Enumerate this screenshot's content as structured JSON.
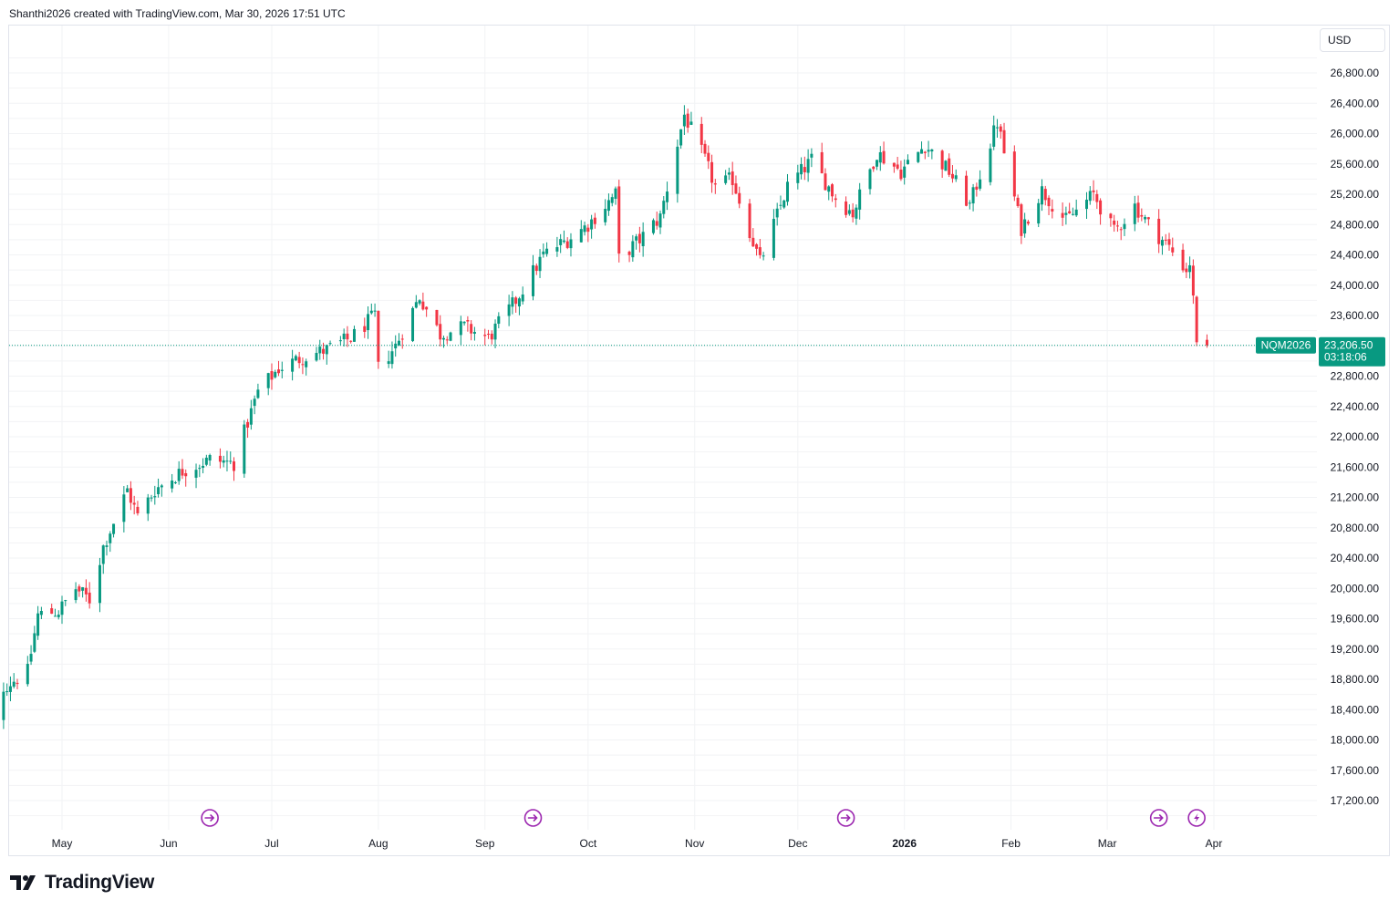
{
  "header": {
    "attribution": "Shanthi2026 created with TradingView.com, Mar 30, 2026 17:51 UTC"
  },
  "currency_button": "USD",
  "last_price": {
    "symbol": "NQM2026",
    "price": "23,206.50",
    "countdown": "03:18:06",
    "value": 23206.5,
    "color": "#089981"
  },
  "footer": {
    "brand": "TradingView"
  },
  "colors": {
    "up": "#089981",
    "down": "#f23645",
    "grid": "#f2f3f5",
    "event": "#9c27b0"
  },
  "event_icons": [
    {
      "date": "2025-06-13",
      "icon": "dividend-arrow-icon"
    },
    {
      "date": "2025-09-15",
      "icon": "dividend-arrow-icon"
    },
    {
      "date": "2025-12-15",
      "icon": "dividend-arrow-icon"
    },
    {
      "date": "2026-03-16",
      "icon": "dividend-arrow-icon"
    },
    {
      "date": "2026-03-27",
      "icon": "lightning-icon"
    }
  ],
  "chart_data": {
    "type": "candlestick",
    "series_name": "NQM2026",
    "y_axis": {
      "ticks": [
        17200,
        17600,
        18000,
        18400,
        18800,
        19200,
        19600,
        20000,
        20400,
        20800,
        21200,
        21600,
        22000,
        22400,
        22800,
        23600,
        24000,
        24400,
        24800,
        25200,
        25600,
        26000,
        26400,
        26800
      ],
      "tick_labels": [
        "17,200.00",
        "17,600.00",
        "18,000.00",
        "18,400.00",
        "18,800.00",
        "19,200.00",
        "19,600.00",
        "20,000.00",
        "20,400.00",
        "20,800.00",
        "21,200.00",
        "21,600.00",
        "22,000.00",
        "22,400.00",
        "22,800.00",
        "23,600.00",
        "24,000.00",
        "24,400.00",
        "24,800.00",
        "25,200.00",
        "25,600.00",
        "26,000.00",
        "26,400.00",
        "26,800.00"
      ],
      "range": [
        16900,
        27400
      ]
    },
    "x_axis": {
      "range": [
        "2025-04-07",
        "2026-04-10"
      ],
      "labels": [
        {
          "date": "2025-05-01",
          "text": "May",
          "bold": false
        },
        {
          "date": "2025-06-01",
          "text": "Jun",
          "bold": false
        },
        {
          "date": "2025-07-01",
          "text": "Jul",
          "bold": false
        },
        {
          "date": "2025-08-01",
          "text": "Aug",
          "bold": false
        },
        {
          "date": "2025-09-01",
          "text": "Sep",
          "bold": false
        },
        {
          "date": "2025-10-01",
          "text": "Oct",
          "bold": false
        },
        {
          "date": "2025-11-01",
          "text": "Nov",
          "bold": false
        },
        {
          "date": "2025-12-01",
          "text": "Dec",
          "bold": false
        },
        {
          "date": "2026-01-01",
          "text": "2026",
          "bold": true
        },
        {
          "date": "2026-02-01",
          "text": "Feb",
          "bold": false
        },
        {
          "date": "2026-03-01",
          "text": "Mar",
          "bold": false
        },
        {
          "date": "2026-04-01",
          "text": "Apr",
          "bold": false
        }
      ]
    },
    "grid": true,
    "close_path": [
      [
        "2025-04-08",
        18600
      ],
      [
        "2025-04-10",
        18000
      ],
      [
        "2025-04-14",
        18700
      ],
      [
        "2025-04-21",
        18900
      ],
      [
        "2025-04-24",
        19650
      ],
      [
        "2025-04-30",
        19700
      ],
      [
        "2025-05-05",
        20000
      ],
      [
        "2025-05-09",
        19850
      ],
      [
        "2025-05-13",
        20550
      ],
      [
        "2025-05-20",
        21300
      ],
      [
        "2025-05-23",
        20950
      ],
      [
        "2025-05-28",
        21300
      ],
      [
        "2025-06-05",
        21550
      ],
      [
        "2025-06-13",
        21700
      ],
      [
        "2025-06-20",
        21650
      ],
      [
        "2025-06-27",
        22600
      ],
      [
        "2025-07-03",
        22900
      ],
      [
        "2025-07-10",
        23050
      ],
      [
        "2025-07-17",
        23150
      ],
      [
        "2025-07-24",
        23300
      ],
      [
        "2025-07-31",
        23600
      ],
      [
        "2025-08-01",
        22900
      ],
      [
        "2025-08-06",
        23200
      ],
      [
        "2025-08-13",
        23850
      ],
      [
        "2025-08-19",
        23350
      ],
      [
        "2025-08-26",
        23450
      ],
      [
        "2025-09-02",
        23300
      ],
      [
        "2025-09-10",
        23800
      ],
      [
        "2025-09-18",
        24400
      ],
      [
        "2025-09-25",
        24600
      ],
      [
        "2025-10-01",
        24800
      ],
      [
        "2025-10-09",
        25200
      ],
      [
        "2025-10-10",
        24350
      ],
      [
        "2025-10-16",
        24600
      ],
      [
        "2025-10-22",
        24900
      ],
      [
        "2025-10-29",
        26250
      ],
      [
        "2025-11-04",
        25650
      ],
      [
        "2025-11-07",
        25300
      ],
      [
        "2025-11-12",
        25400
      ],
      [
        "2025-11-20",
        24300
      ],
      [
        "2025-11-28",
        25300
      ],
      [
        "2025-12-05",
        25650
      ],
      [
        "2025-12-12",
        25150
      ],
      [
        "2025-12-17",
        24950
      ],
      [
        "2025-12-24",
        25750
      ],
      [
        "2025-12-31",
        25500
      ],
      [
        "2026-01-07",
        25850
      ],
      [
        "2026-01-14",
        25500
      ],
      [
        "2026-01-20",
        25050
      ],
      [
        "2026-01-28",
        26150
      ],
      [
        "2026-02-04",
        24750
      ],
      [
        "2026-02-10",
        25250
      ],
      [
        "2026-02-17",
        24850
      ],
      [
        "2026-02-25",
        25200
      ],
      [
        "2026-03-03",
        24700
      ],
      [
        "2026-03-09",
        25050
      ],
      [
        "2026-03-13",
        24800
      ],
      [
        "2026-03-19",
        24500
      ],
      [
        "2026-03-24",
        24200
      ],
      [
        "2026-03-25",
        24300
      ],
      [
        "2026-03-26",
        23800
      ],
      [
        "2026-03-27",
        23300
      ],
      [
        "2026-03-30",
        23206.5
      ]
    ],
    "last_value": 23206.5
  }
}
